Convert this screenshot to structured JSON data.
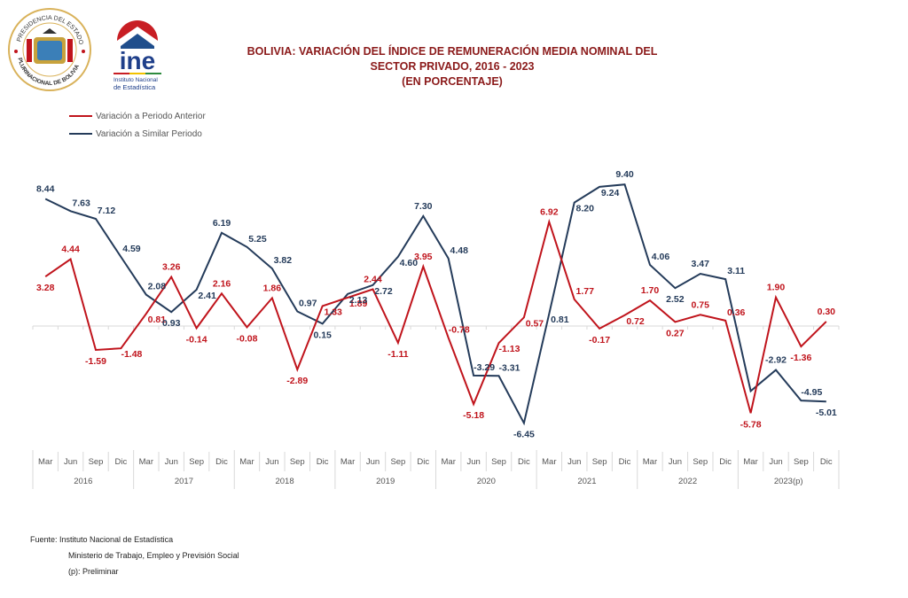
{
  "logos": {
    "seal_top_text": "PRESIDENCIA DEL ESTADO",
    "seal_bottom_text": "PLURINACIONAL DE BOLIVIA",
    "ine_wordmark": "ine",
    "ine_line1": "Instituto Nacional",
    "ine_line2": "de Estadística"
  },
  "title": {
    "line1": "BOLIVIA: VARIACIÓN DEL ÍNDICE DE REMUNERACIÓN MEDIA NOMINAL DEL",
    "line2": "SECTOR PRIVADO, 2016 - 2023",
    "line3": "(EN PORCENTAJE)"
  },
  "footer": {
    "source": "Fuente: Instituto Nacional de Estadística",
    "source2": "Ministerio de Trabajo, Empleo y Previsión Social",
    "note": "(p): Preliminar"
  },
  "colors": {
    "series_anterior": "#c0141c",
    "series_similar": "#243b5a",
    "title": "#8b1a1a"
  },
  "chart_data": {
    "type": "line",
    "title": "BOLIVIA: VARIACIÓN DEL ÍNDICE DE REMUNERACIÓN MEDIA NOMINAL DEL SECTOR PRIVADO, 2016 - 2023 (EN PORCENTAJE)",
    "xlabel": "",
    "ylabel": "",
    "ylim": [
      -7,
      10
    ],
    "grid": false,
    "legend_position": "top-left",
    "years": [
      "2016",
      "2017",
      "2018",
      "2019",
      "2020",
      "2021",
      "2022",
      "2023(p)"
    ],
    "quarters": [
      "Mar",
      "Jun",
      "Sep",
      "Dic"
    ],
    "categories": [
      "Mar 2016",
      "Jun 2016",
      "Sep 2016",
      "Dic 2016",
      "Mar 2017",
      "Jun 2017",
      "Sep 2017",
      "Dic 2017",
      "Mar 2018",
      "Jun 2018",
      "Sep 2018",
      "Dic 2018",
      "Mar 2019",
      "Jun 2019",
      "Sep 2019",
      "Dic 2019",
      "Mar 2020",
      "Jun 2020",
      "Sep 2020",
      "Dic 2020",
      "Mar 2021",
      "Jun 2021",
      "Sep 2021",
      "Dic 2021",
      "Mar 2022",
      "Jun 2022",
      "Sep 2022",
      "Dic 2022",
      "Mar 2023(p)",
      "Jun 2023(p)",
      "Sep 2023(p)",
      "Dic 2023(p)"
    ],
    "series": [
      {
        "name": "Variación a Periodo Anterior",
        "color": "#c0141c",
        "values": [
          3.28,
          4.44,
          -1.59,
          -1.48,
          0.81,
          3.26,
          -0.14,
          2.16,
          -0.08,
          1.86,
          -2.89,
          1.33,
          1.89,
          2.44,
          -1.11,
          3.95,
          -0.78,
          -5.18,
          -1.13,
          0.57,
          6.92,
          1.77,
          -0.17,
          0.72,
          1.7,
          0.27,
          0.75,
          0.36,
          -5.78,
          1.9,
          -1.36,
          0.3
        ]
      },
      {
        "name": "Variación a Similar Periodo",
        "color": "#243b5a",
        "values": [
          8.44,
          7.63,
          7.12,
          4.59,
          2.08,
          0.93,
          2.41,
          6.19,
          5.25,
          3.82,
          0.97,
          0.15,
          2.13,
          2.72,
          4.6,
          7.3,
          4.48,
          -3.29,
          -3.31,
          -6.45,
          0.81,
          8.2,
          9.24,
          9.4,
          4.06,
          2.52,
          3.47,
          3.11,
          -4.32,
          -2.92,
          -4.95,
          -5.01
        ]
      }
    ],
    "hidden_labels": {
      "Variación a Similar Periodo": [
        28
      ]
    }
  }
}
